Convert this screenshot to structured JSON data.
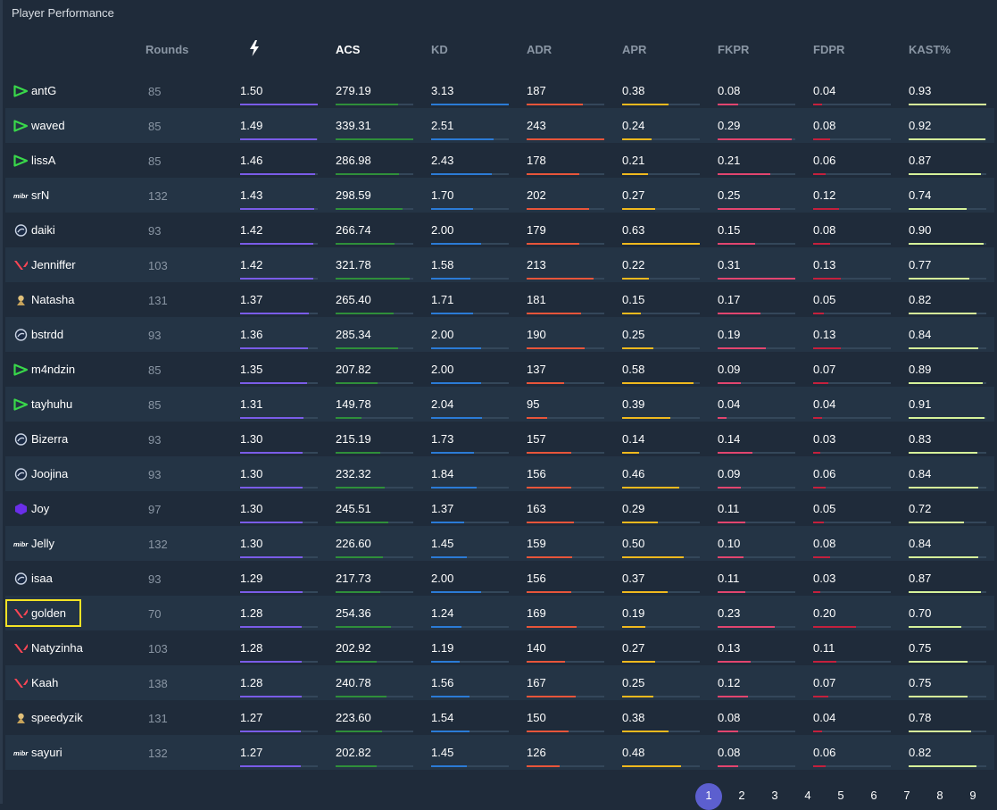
{
  "panel": {
    "title": "Player Performance"
  },
  "columns": {
    "rounds": "Rounds",
    "rating_icon": "lightning-icon",
    "acs": "ACS",
    "kd": "KD",
    "adr": "ADR",
    "apr": "APR",
    "fkpr": "FKPR",
    "fdpr": "FDPR",
    "kast": "KAST%"
  },
  "colors": {
    "rating": "#7a5ce8",
    "acs": "#2f8f3a",
    "kd": "#2b7bd6",
    "adr": "#e8553a",
    "apr": "#f0b91e",
    "fkpr": "#e2456f",
    "fdpr": "#c4203d",
    "kast": "#d6f29a",
    "highlight": "#f4e325",
    "pager_active": "#5c5fcf"
  },
  "players": [
    {
      "team": "green-arrow",
      "name": "antG",
      "rounds": "85",
      "rating": "1.50",
      "acs": "279.19",
      "kd": "3.13",
      "adr": "187",
      "apr": "0.38",
      "fkpr": "0.08",
      "fdpr": "0.04",
      "kast": "0.93",
      "rating_lvl": 1.0,
      "acs_lvl": 0.8,
      "kd_lvl": 1.0,
      "adr_lvl": 0.72,
      "apr_lvl": 0.6,
      "fkpr_lvl": 0.26,
      "fdpr_lvl": 0.12,
      "kast_lvl": 1.0
    },
    {
      "team": "green-arrow",
      "name": "waved",
      "rounds": "85",
      "rating": "1.49",
      "acs": "339.31",
      "kd": "2.51",
      "adr": "243",
      "apr": "0.24",
      "fkpr": "0.29",
      "fdpr": "0.08",
      "kast": "0.92",
      "rating_lvl": 0.99,
      "acs_lvl": 1.0,
      "kd_lvl": 0.8,
      "adr_lvl": 1.0,
      "apr_lvl": 0.38,
      "fkpr_lvl": 0.95,
      "fdpr_lvl": 0.22,
      "kast_lvl": 0.99
    },
    {
      "team": "green-arrow",
      "name": "lissA",
      "rounds": "85",
      "rating": "1.46",
      "acs": "286.98",
      "kd": "2.43",
      "adr": "178",
      "apr": "0.21",
      "fkpr": "0.21",
      "fdpr": "0.06",
      "kast": "0.87",
      "rating_lvl": 0.97,
      "acs_lvl": 0.82,
      "kd_lvl": 0.78,
      "adr_lvl": 0.68,
      "apr_lvl": 0.33,
      "fkpr_lvl": 0.68,
      "fdpr_lvl": 0.16,
      "kast_lvl": 0.93
    },
    {
      "team": "mibr",
      "name": "srN",
      "rounds": "132",
      "rating": "1.43",
      "acs": "298.59",
      "kd": "1.70",
      "adr": "202",
      "apr": "0.27",
      "fkpr": "0.25",
      "fdpr": "0.12",
      "kast": "0.74",
      "rating_lvl": 0.95,
      "acs_lvl": 0.86,
      "kd_lvl": 0.54,
      "adr_lvl": 0.8,
      "apr_lvl": 0.43,
      "fkpr_lvl": 0.81,
      "fdpr_lvl": 0.33,
      "kast_lvl": 0.75
    },
    {
      "team": "liquid",
      "name": "daiki",
      "rounds": "93",
      "rating": "1.42",
      "acs": "266.74",
      "kd": "2.00",
      "adr": "179",
      "apr": "0.63",
      "fkpr": "0.15",
      "fdpr": "0.08",
      "kast": "0.90",
      "rating_lvl": 0.94,
      "acs_lvl": 0.76,
      "kd_lvl": 0.64,
      "adr_lvl": 0.68,
      "apr_lvl": 1.0,
      "fkpr_lvl": 0.48,
      "fdpr_lvl": 0.22,
      "kast_lvl": 0.97
    },
    {
      "team": "valorant",
      "name": "Jenniffer",
      "rounds": "103",
      "rating": "1.42",
      "acs": "321.78",
      "kd": "1.58",
      "adr": "213",
      "apr": "0.22",
      "fkpr": "0.31",
      "fdpr": "0.13",
      "kast": "0.77",
      "rating_lvl": 0.94,
      "acs_lvl": 0.95,
      "kd_lvl": 0.5,
      "adr_lvl": 0.86,
      "apr_lvl": 0.35,
      "fkpr_lvl": 1.0,
      "fdpr_lvl": 0.36,
      "kast_lvl": 0.78
    },
    {
      "team": "furia",
      "name": "Natasha",
      "rounds": "131",
      "rating": "1.37",
      "acs": "265.40",
      "kd": "1.71",
      "adr": "181",
      "apr": "0.15",
      "fkpr": "0.17",
      "fdpr": "0.05",
      "kast": "0.82",
      "rating_lvl": 0.88,
      "acs_lvl": 0.75,
      "kd_lvl": 0.54,
      "adr_lvl": 0.7,
      "apr_lvl": 0.24,
      "fkpr_lvl": 0.55,
      "fdpr_lvl": 0.14,
      "kast_lvl": 0.87
    },
    {
      "team": "liquid",
      "name": "bstrdd",
      "rounds": "93",
      "rating": "1.36",
      "acs": "285.34",
      "kd": "2.00",
      "adr": "190",
      "apr": "0.25",
      "fkpr": "0.19",
      "fdpr": "0.13",
      "kast": "0.84",
      "rating_lvl": 0.87,
      "acs_lvl": 0.81,
      "kd_lvl": 0.64,
      "adr_lvl": 0.75,
      "apr_lvl": 0.4,
      "fkpr_lvl": 0.62,
      "fdpr_lvl": 0.36,
      "kast_lvl": 0.9
    },
    {
      "team": "green-arrow",
      "name": "m4ndzin",
      "rounds": "85",
      "rating": "1.35",
      "acs": "207.82",
      "kd": "2.00",
      "adr": "137",
      "apr": "0.58",
      "fkpr": "0.09",
      "fdpr": "0.07",
      "kast": "0.89",
      "rating_lvl": 0.86,
      "acs_lvl": 0.54,
      "kd_lvl": 0.64,
      "adr_lvl": 0.48,
      "apr_lvl": 0.92,
      "fkpr_lvl": 0.3,
      "fdpr_lvl": 0.19,
      "kast_lvl": 0.95
    },
    {
      "team": "green-arrow",
      "name": "tayhuhu",
      "rounds": "85",
      "rating": "1.31",
      "acs": "149.78",
      "kd": "2.04",
      "adr": "95",
      "apr": "0.39",
      "fkpr": "0.04",
      "fdpr": "0.04",
      "kast": "0.91",
      "rating_lvl": 0.82,
      "acs_lvl": 0.33,
      "kd_lvl": 0.65,
      "adr_lvl": 0.26,
      "apr_lvl": 0.62,
      "fkpr_lvl": 0.12,
      "fdpr_lvl": 0.12,
      "kast_lvl": 0.98
    },
    {
      "team": "liquid",
      "name": "Bizerra",
      "rounds": "93",
      "rating": "1.30",
      "acs": "215.19",
      "kd": "1.73",
      "adr": "157",
      "apr": "0.14",
      "fkpr": "0.14",
      "fdpr": "0.03",
      "kast": "0.83",
      "rating_lvl": 0.81,
      "acs_lvl": 0.57,
      "kd_lvl": 0.55,
      "adr_lvl": 0.58,
      "apr_lvl": 0.22,
      "fkpr_lvl": 0.45,
      "fdpr_lvl": 0.09,
      "kast_lvl": 0.88
    },
    {
      "team": "liquid",
      "name": "Joojina",
      "rounds": "93",
      "rating": "1.30",
      "acs": "232.32",
      "kd": "1.84",
      "adr": "156",
      "apr": "0.46",
      "fkpr": "0.09",
      "fdpr": "0.06",
      "kast": "0.84",
      "rating_lvl": 0.81,
      "acs_lvl": 0.63,
      "kd_lvl": 0.59,
      "adr_lvl": 0.57,
      "apr_lvl": 0.73,
      "fkpr_lvl": 0.3,
      "fdpr_lvl": 0.16,
      "kast_lvl": 0.9
    },
    {
      "team": "purple",
      "name": "Joy",
      "rounds": "97",
      "rating": "1.30",
      "acs": "245.51",
      "kd": "1.37",
      "adr": "163",
      "apr": "0.29",
      "fkpr": "0.11",
      "fdpr": "0.05",
      "kast": "0.72",
      "rating_lvl": 0.81,
      "acs_lvl": 0.68,
      "kd_lvl": 0.43,
      "adr_lvl": 0.61,
      "apr_lvl": 0.46,
      "fkpr_lvl": 0.36,
      "fdpr_lvl": 0.14,
      "kast_lvl": 0.71
    },
    {
      "team": "mibr",
      "name": "Jelly",
      "rounds": "132",
      "rating": "1.30",
      "acs": "226.60",
      "kd": "1.45",
      "adr": "159",
      "apr": "0.50",
      "fkpr": "0.10",
      "fdpr": "0.08",
      "kast": "0.84",
      "rating_lvl": 0.81,
      "acs_lvl": 0.61,
      "kd_lvl": 0.46,
      "adr_lvl": 0.59,
      "apr_lvl": 0.79,
      "fkpr_lvl": 0.33,
      "fdpr_lvl": 0.22,
      "kast_lvl": 0.9
    },
    {
      "team": "liquid",
      "name": "isaa",
      "rounds": "93",
      "rating": "1.29",
      "acs": "217.73",
      "kd": "2.00",
      "adr": "156",
      "apr": "0.37",
      "fkpr": "0.11",
      "fdpr": "0.03",
      "kast": "0.87",
      "rating_lvl": 0.8,
      "acs_lvl": 0.58,
      "kd_lvl": 0.64,
      "adr_lvl": 0.57,
      "apr_lvl": 0.59,
      "fkpr_lvl": 0.36,
      "fdpr_lvl": 0.09,
      "kast_lvl": 0.93
    },
    {
      "team": "valorant",
      "name": "golden",
      "rounds": "70",
      "rating": "1.28",
      "acs": "254.36",
      "kd": "1.24",
      "adr": "169",
      "apr": "0.19",
      "fkpr": "0.23",
      "fdpr": "0.20",
      "kast": "0.70",
      "rating_lvl": 0.79,
      "acs_lvl": 0.71,
      "kd_lvl": 0.39,
      "adr_lvl": 0.64,
      "apr_lvl": 0.3,
      "fkpr_lvl": 0.74,
      "fdpr_lvl": 0.55,
      "kast_lvl": 0.68
    },
    {
      "team": "valorant",
      "name": "Natyzinha",
      "rounds": "103",
      "rating": "1.28",
      "acs": "202.92",
      "kd": "1.19",
      "adr": "140",
      "apr": "0.27",
      "fkpr": "0.13",
      "fdpr": "0.11",
      "kast": "0.75",
      "rating_lvl": 0.79,
      "acs_lvl": 0.53,
      "kd_lvl": 0.37,
      "adr_lvl": 0.49,
      "apr_lvl": 0.43,
      "fkpr_lvl": 0.42,
      "fdpr_lvl": 0.3,
      "kast_lvl": 0.76
    },
    {
      "team": "valorant",
      "name": "Kaah",
      "rounds": "138",
      "rating": "1.28",
      "acs": "240.78",
      "kd": "1.56",
      "adr": "167",
      "apr": "0.25",
      "fkpr": "0.12",
      "fdpr": "0.07",
      "kast": "0.75",
      "rating_lvl": 0.79,
      "acs_lvl": 0.66,
      "kd_lvl": 0.49,
      "adr_lvl": 0.63,
      "apr_lvl": 0.4,
      "fkpr_lvl": 0.39,
      "fdpr_lvl": 0.19,
      "kast_lvl": 0.76
    },
    {
      "team": "furia",
      "name": "speedyzik",
      "rounds": "131",
      "rating": "1.27",
      "acs": "223.60",
      "kd": "1.54",
      "adr": "150",
      "apr": "0.38",
      "fkpr": "0.08",
      "fdpr": "0.04",
      "kast": "0.78",
      "rating_lvl": 0.78,
      "acs_lvl": 0.6,
      "kd_lvl": 0.49,
      "adr_lvl": 0.54,
      "apr_lvl": 0.6,
      "fkpr_lvl": 0.26,
      "fdpr_lvl": 0.12,
      "kast_lvl": 0.8
    },
    {
      "team": "mibr",
      "name": "sayuri",
      "rounds": "132",
      "rating": "1.27",
      "acs": "202.82",
      "kd": "1.45",
      "adr": "126",
      "apr": "0.48",
      "fkpr": "0.08",
      "fdpr": "0.06",
      "kast": "0.82",
      "rating_lvl": 0.78,
      "acs_lvl": 0.53,
      "kd_lvl": 0.46,
      "adr_lvl": 0.42,
      "apr_lvl": 0.76,
      "fkpr_lvl": 0.26,
      "fdpr_lvl": 0.16,
      "kast_lvl": 0.87
    }
  ],
  "highlighted_player": "golden",
  "pager": {
    "pages": [
      "1",
      "2",
      "3",
      "4",
      "5",
      "6",
      "7",
      "8",
      "9"
    ],
    "active": "1"
  }
}
